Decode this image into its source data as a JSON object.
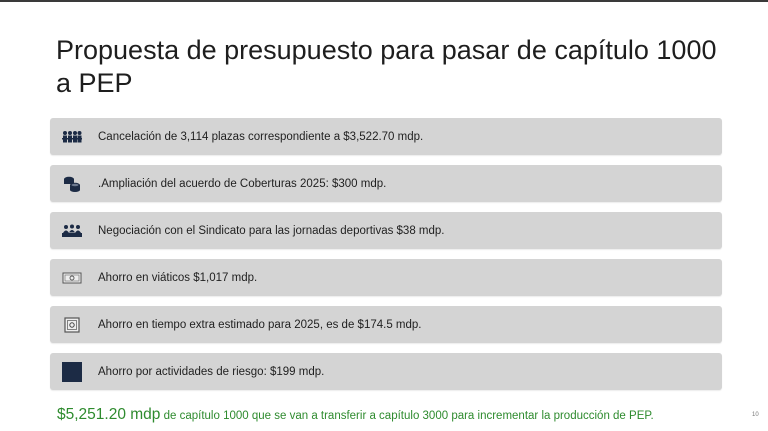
{
  "slide": {
    "title": "Propuesta de presupuesto para pasar de capítulo 1000 a PEP",
    "items": [
      {
        "icon": "people-group-icon",
        "text": "Cancelación de 3,114 plazas correspondiente a $3,522.70 mdp."
      },
      {
        "icon": "coins-stack-icon",
        "text": ".Ampliación del acuerdo de Coberturas 2025: $300 mdp."
      },
      {
        "icon": "meeting-group-icon",
        "text": "Negociación con el Sindicato para las jornadas deportivas $38 mdp."
      },
      {
        "icon": "money-bill-icon",
        "text": "Ahorro en viáticos $1,017 mdp."
      },
      {
        "icon": "safe-box-icon",
        "text": "Ahorro en tiempo extra estimado para 2025, es de $174.5 mdp."
      },
      {
        "icon": "dark-square-icon",
        "text": "Ahorro por actividades de riesgo: $199 mdp."
      }
    ],
    "footer_amount": "$5,251.20 mdp",
    "footer_text": " de capítulo 1000 que se van a transferir a capítulo 3000 para incrementar la producción de PEP.",
    "page_number": "10",
    "colors": {
      "item_background": "#d4d4d4",
      "icon_navy": "#1c2b45",
      "footer_green": "#2e8b2e"
    }
  }
}
